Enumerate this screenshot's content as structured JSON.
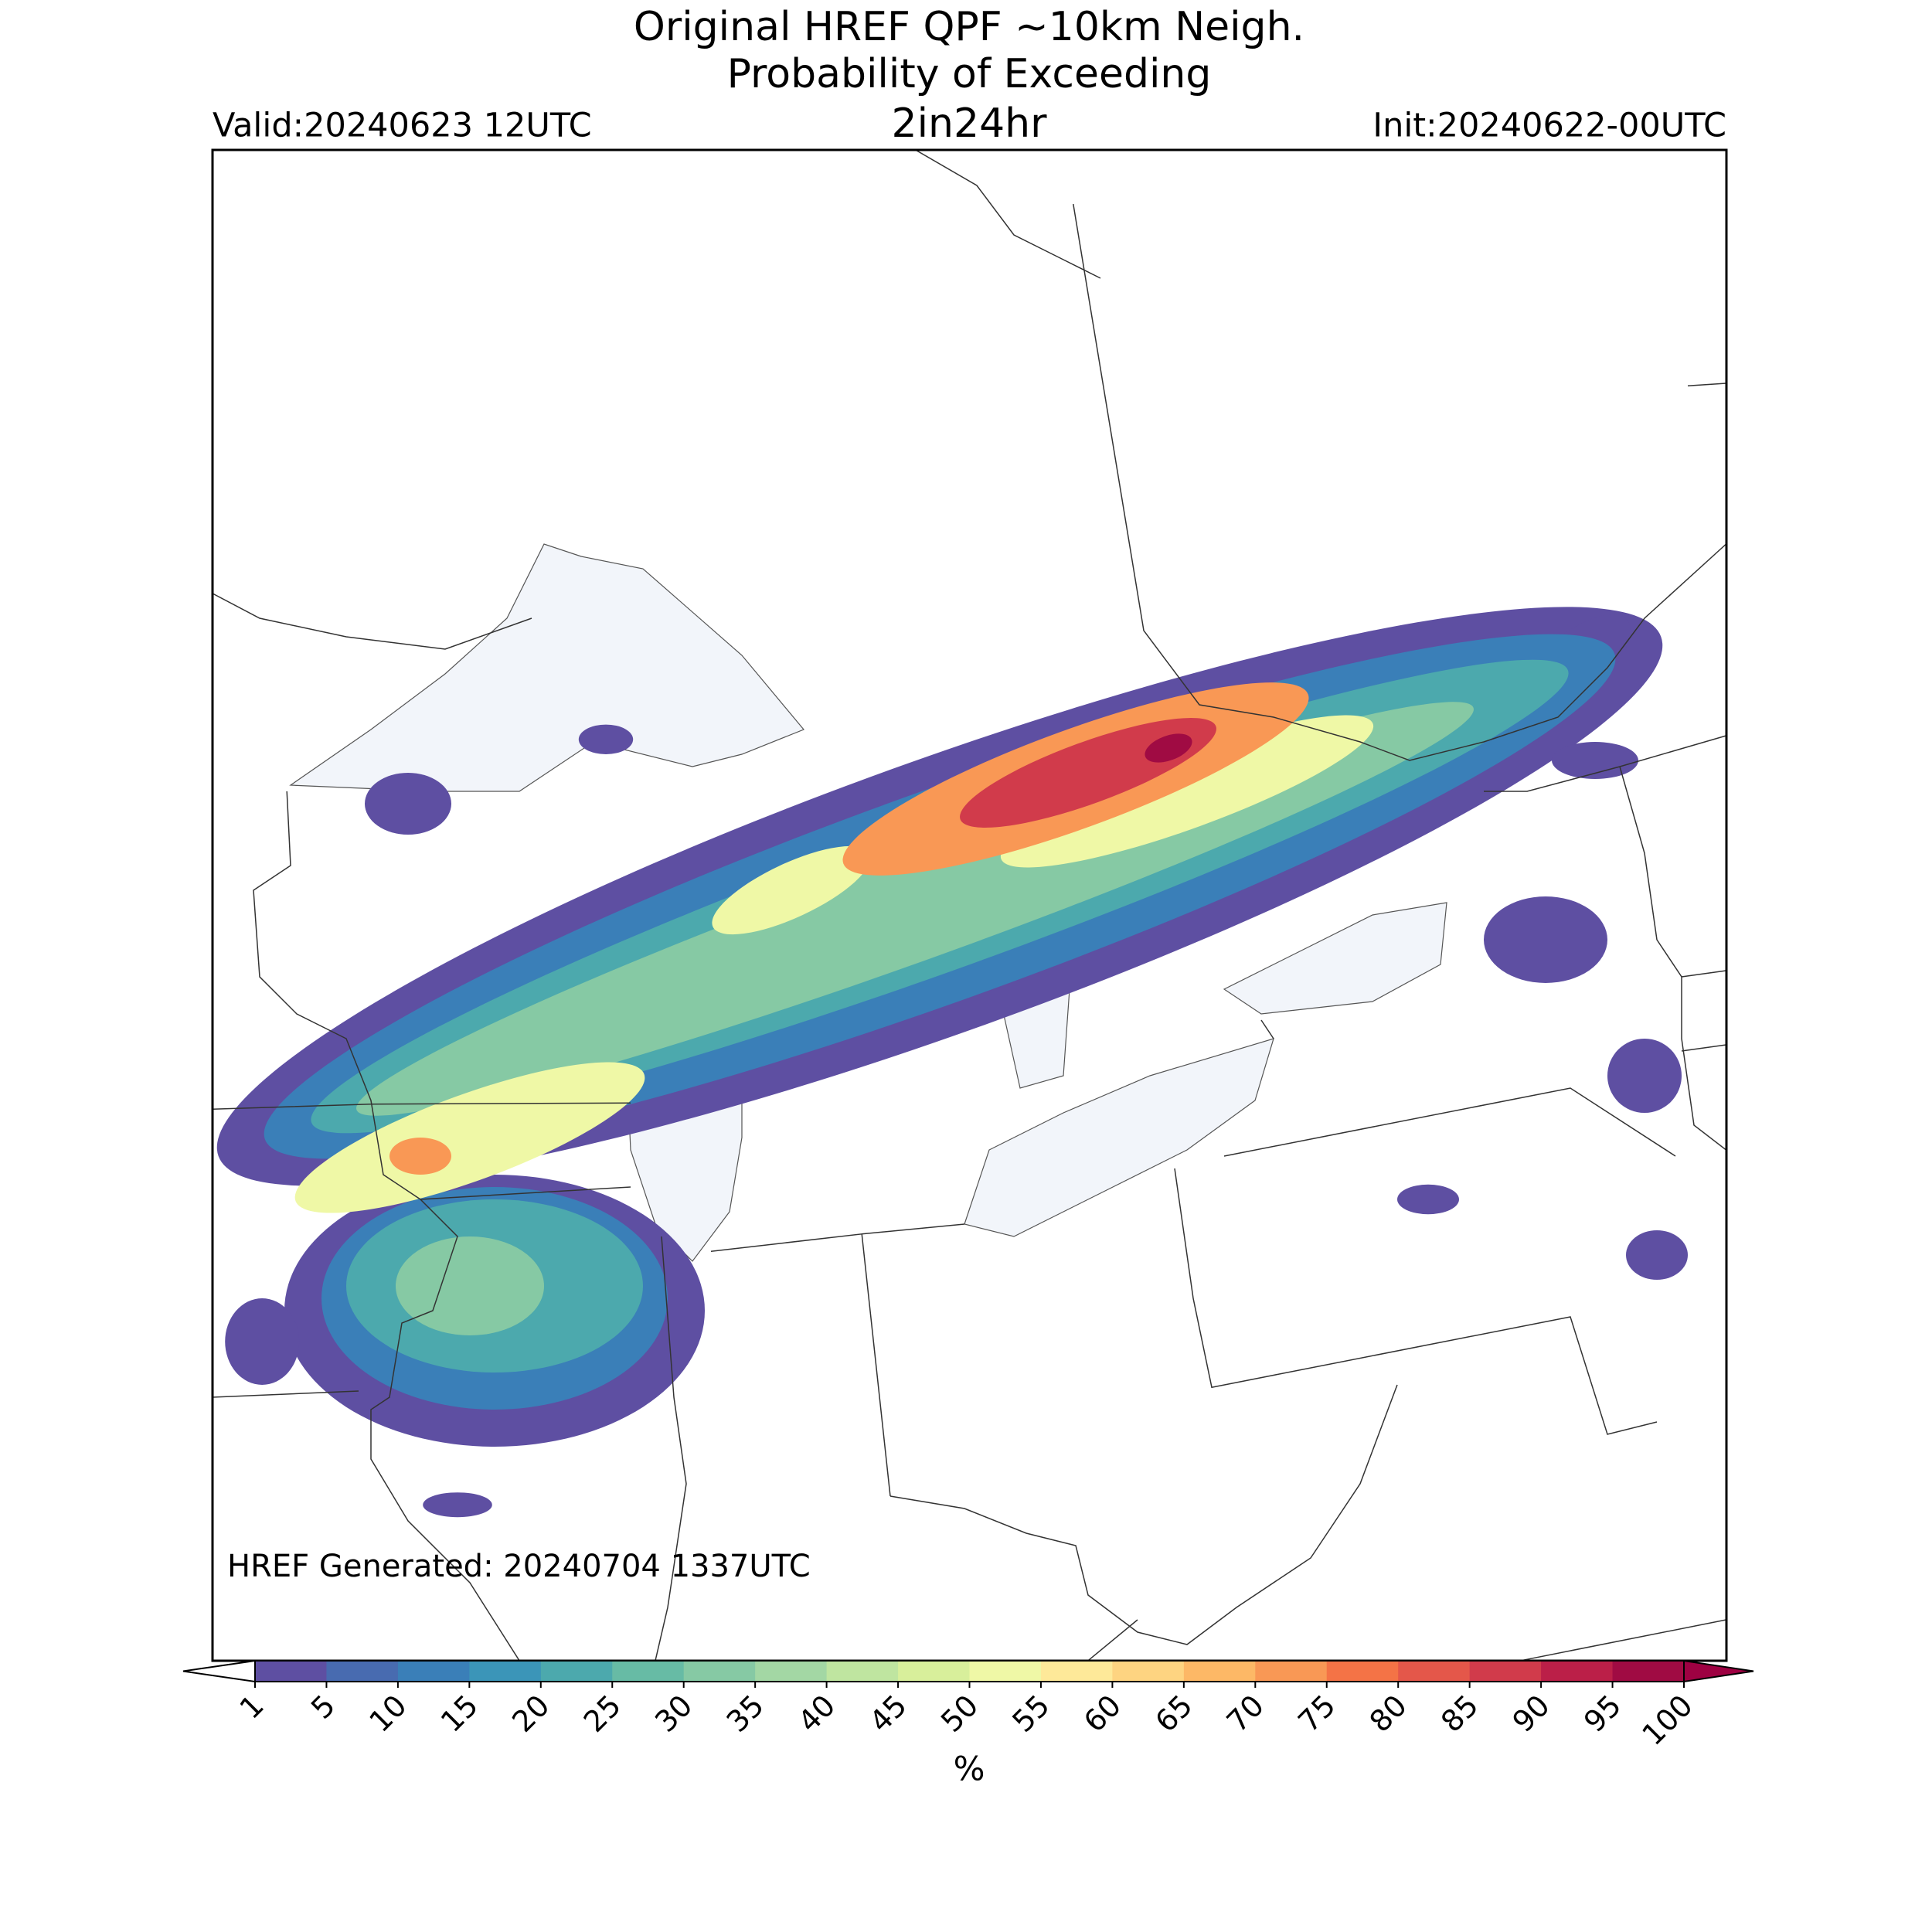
{
  "title": [
    "Original HREF QPF ~10km Neigh.",
    "Probability of Exceeding"
  ],
  "threshold": "2in24hr",
  "valid": "Valid:20240623 12UTC",
  "init": "Init:20240622-00UTC",
  "generated": "HREF Generated: 20240704 1337UTC",
  "colorbar": {
    "label": "%",
    "ticks": [
      1,
      5,
      10,
      15,
      20,
      25,
      30,
      35,
      40,
      45,
      50,
      55,
      60,
      65,
      70,
      75,
      80,
      85,
      90,
      95,
      100
    ],
    "colors": [
      "#5e4fa2",
      "#486bb0",
      "#3a7fb8",
      "#3b95b8",
      "#4ca9ad",
      "#67bba5",
      "#86c9a4",
      "#a3d7a4",
      "#bfe5a0",
      "#d8ef9b",
      "#eff8a6",
      "#fee999",
      "#fed481",
      "#fdb866",
      "#f99855",
      "#f47346",
      "#e4574a",
      "#d13b4b",
      "#bb1f48",
      "#a00b43"
    ],
    "under_color": "#ffffff",
    "over_color": "#9e0142"
  }
}
